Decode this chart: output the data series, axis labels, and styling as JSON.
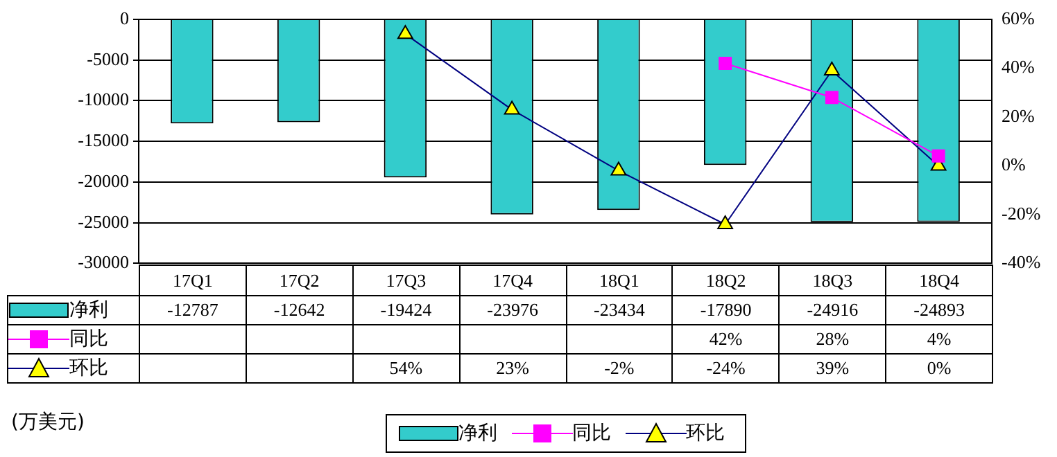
{
  "chart_data": {
    "type": "bar",
    "categories": [
      "17Q1",
      "17Q2",
      "17Q3",
      "17Q4",
      "18Q1",
      "18Q2",
      "18Q3",
      "18Q4"
    ],
    "series": [
      {
        "name": "净利",
        "color": "#33cccc",
        "values": [
          -12787,
          -12642,
          -19424,
          -23976,
          -23434,
          -17890,
          -24916,
          -24893
        ],
        "value_labels": [
          "-12787",
          "-12642",
          "-19424",
          "-23976",
          "-23434",
          "-17890",
          "-24916",
          "-24893"
        ]
      },
      {
        "name": "同比",
        "type": "line",
        "axis": "y2",
        "color": "#ff00ff",
        "marker": "square",
        "values": [
          null,
          null,
          null,
          null,
          null,
          42,
          28,
          4
        ],
        "value_labels": [
          null,
          null,
          null,
          null,
          null,
          "42%",
          "28%",
          "4%"
        ]
      },
      {
        "name": "环比",
        "type": "line",
        "axis": "y2",
        "color": "#000080",
        "marker": "triangle",
        "values": [
          null,
          null,
          54,
          23,
          -2,
          -24,
          39,
          0
        ],
        "value_labels": [
          null,
          null,
          "54%",
          "23%",
          "-2%",
          "-24%",
          "39%",
          "0%"
        ]
      }
    ],
    "ylim": [
      -30000,
      0
    ],
    "yticks": [
      0,
      -5000,
      -10000,
      -15000,
      -20000,
      -25000,
      -30000
    ],
    "y2lim": [
      -40,
      60
    ],
    "y2ticks": [
      {
        "value": 60,
        "label": "60%"
      },
      {
        "value": 40,
        "label": "40%"
      },
      {
        "value": 20,
        "label": "20%"
      },
      {
        "value": 0,
        "label": "0%"
      },
      {
        "value": -20,
        "label": "-20%"
      },
      {
        "value": -40,
        "label": "-40%"
      }
    ],
    "grid": "y",
    "legend": "bottom",
    "annotations": [
      "(万美元)"
    ]
  }
}
